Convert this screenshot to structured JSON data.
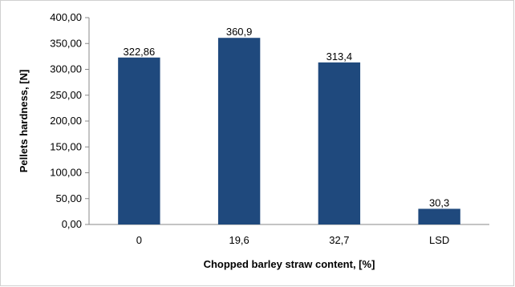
{
  "chart_data": {
    "type": "bar",
    "categories": [
      "0",
      "19,6",
      "32,7",
      "LSD"
    ],
    "values": [
      322.86,
      360.9,
      313.4,
      30.3
    ],
    "data_labels": [
      "322,86",
      "360,9",
      "313,4",
      "30,3"
    ],
    "xlabel": "Chopped barley straw content, [%]",
    "ylabel": "Pellets hardness, [N]",
    "ylim": [
      0,
      400
    ],
    "yticks": [
      "0,00",
      "50,00",
      "100,00",
      "150,00",
      "200,00",
      "250,00",
      "300,00",
      "350,00",
      "400,00"
    ],
    "bar_color": "#1F497D",
    "grid": false,
    "legend": "none"
  }
}
